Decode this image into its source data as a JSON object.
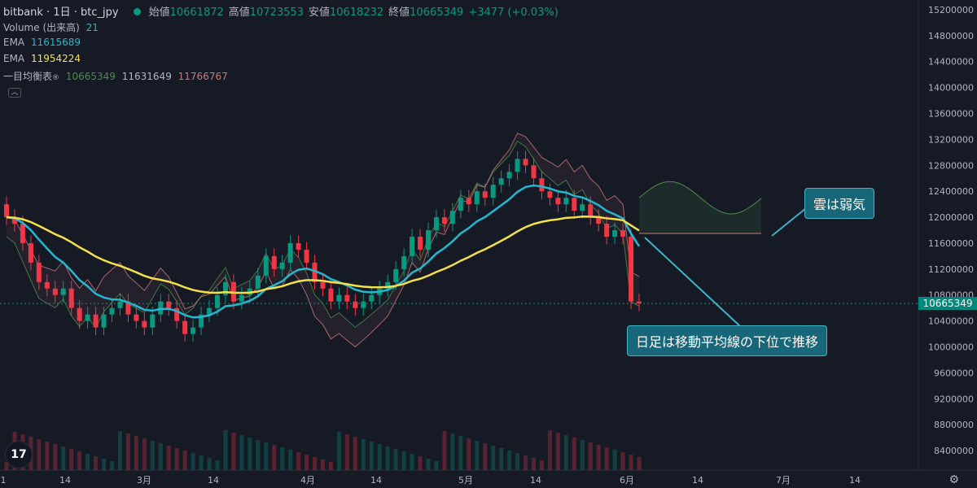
{
  "header": {
    "symbol": "bitbank · 1日 · btc_jpy",
    "open_label": "始値",
    "open": "10661872",
    "high_label": "高値",
    "high": "10723553",
    "low_label": "安値",
    "low": "10618232",
    "close_label": "終値",
    "close": "10665349",
    "change": "+3477 (+0.03%)"
  },
  "indicators": {
    "volume": {
      "label": "Volume (出来高)",
      "value": "21"
    },
    "ema1": {
      "label": "EMA",
      "value": "11615689",
      "color": "#22b8cf"
    },
    "ema2": {
      "label": "EMA",
      "value": "11954224",
      "color": "#f5e04b"
    },
    "ichimoku": {
      "label": "一目均衡表",
      "v1": "10665349",
      "v2": "11631649",
      "v3": "11766767"
    }
  },
  "last_price_tag": "10665349",
  "annotations": {
    "cloud": "雲は弱気",
    "ma": "日足は移動平均線の下位で推移"
  },
  "logo_text": "17",
  "chart_data": {
    "type": "line",
    "y_axis_ticks": [
      15200000,
      14800000,
      14400000,
      14000000,
      13600000,
      13200000,
      12800000,
      12400000,
      12000000,
      11600000,
      11200000,
      10800000,
      10400000,
      10000000,
      9600000,
      9200000,
      8800000,
      8400000
    ],
    "x_axis_labels": [
      "1",
      "14",
      "3月",
      "14",
      "4月",
      "14",
      "5月",
      "14",
      "6月",
      "14",
      "7月",
      "14"
    ],
    "ylim": [
      8100000,
      15350000
    ],
    "colors": {
      "up": "#089981",
      "down": "#f23645",
      "ema_fast": "#22b8cf",
      "ema_slow": "#f5e04b",
      "span_a": "#4c8c4a",
      "span_b": "#c97b7b",
      "lagging": "#4c8c4a"
    },
    "candles_close": [
      12000000,
      11900000,
      11600000,
      11300000,
      11000000,
      10900000,
      10800000,
      10900000,
      10600000,
      10400000,
      10500000,
      10300000,
      10500000,
      10600000,
      10700000,
      10500000,
      10400000,
      10300000,
      10500000,
      10700000,
      10600000,
      10400000,
      10200000,
      10300000,
      10500000,
      10600000,
      10800000,
      11000000,
      10700000,
      10800000,
      10900000,
      11100000,
      11400000,
      11200000,
      11300000,
      11600000,
      11500000,
      11300000,
      11000000,
      10900000,
      10700000,
      10800000,
      10700000,
      10600000,
      10700000,
      10800000,
      10900000,
      11000000,
      11200000,
      11400000,
      11700000,
      11500000,
      11800000,
      12000000,
      11900000,
      12100000,
      12300000,
      12200000,
      12400000,
      12300000,
      12500000,
      12600000,
      12700000,
      12900000,
      12800000,
      12600000,
      12400000,
      12300000,
      12200000,
      12300000,
      12100000,
      12200000,
      12000000,
      11900000,
      11700000,
      11800000,
      11700000,
      10700000,
      10670000
    ]
  }
}
